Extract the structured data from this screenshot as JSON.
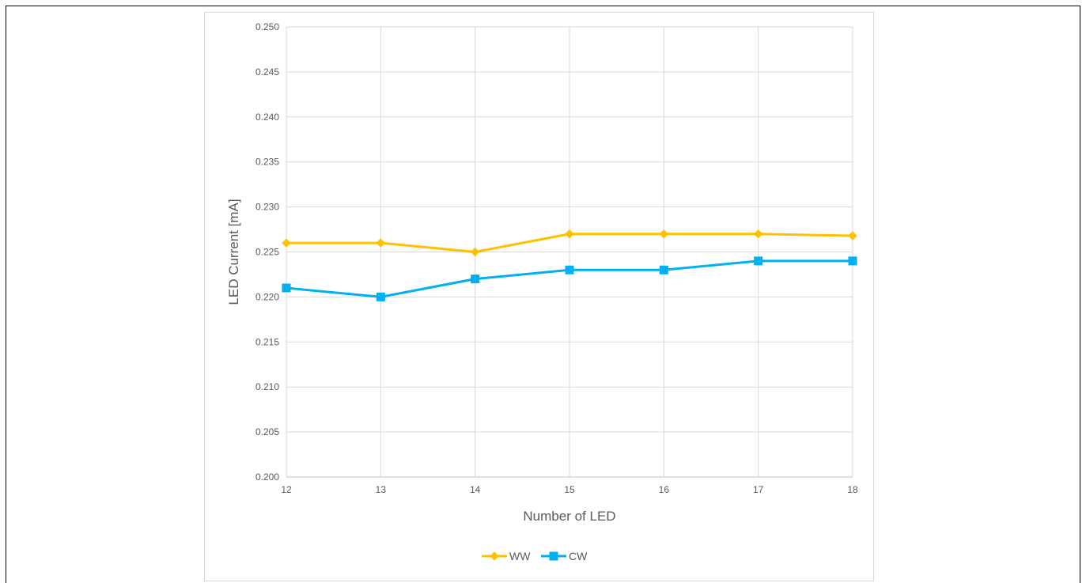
{
  "chart_data": {
    "type": "line",
    "title": "",
    "xlabel": "Number of LED",
    "ylabel": "LED Current [mA]",
    "x": [
      12,
      13,
      14,
      15,
      16,
      17,
      18
    ],
    "x_tick_labels": [
      "12",
      "13",
      "14",
      "15",
      "16",
      "17",
      "18"
    ],
    "ylim": [
      0.2,
      0.25
    ],
    "y_ticks": [
      0.2,
      0.205,
      0.21,
      0.215,
      0.22,
      0.225,
      0.23,
      0.235,
      0.24,
      0.245,
      0.25
    ],
    "y_tick_labels": [
      "0.200",
      "0.205",
      "0.210",
      "0.215",
      "0.220",
      "0.225",
      "0.230",
      "0.235",
      "0.240",
      "0.245",
      "0.250"
    ],
    "grid": true,
    "legend_position": "bottom-center",
    "series": [
      {
        "name": "WW",
        "color": "#FFC000",
        "marker": "diamond",
        "values": [
          0.226,
          0.226,
          0.225,
          0.227,
          0.227,
          0.227,
          0.2268
        ]
      },
      {
        "name": "CW",
        "color": "#00B0F0",
        "marker": "square",
        "values": [
          0.221,
          0.22,
          0.222,
          0.223,
          0.223,
          0.224,
          0.224
        ]
      }
    ]
  }
}
